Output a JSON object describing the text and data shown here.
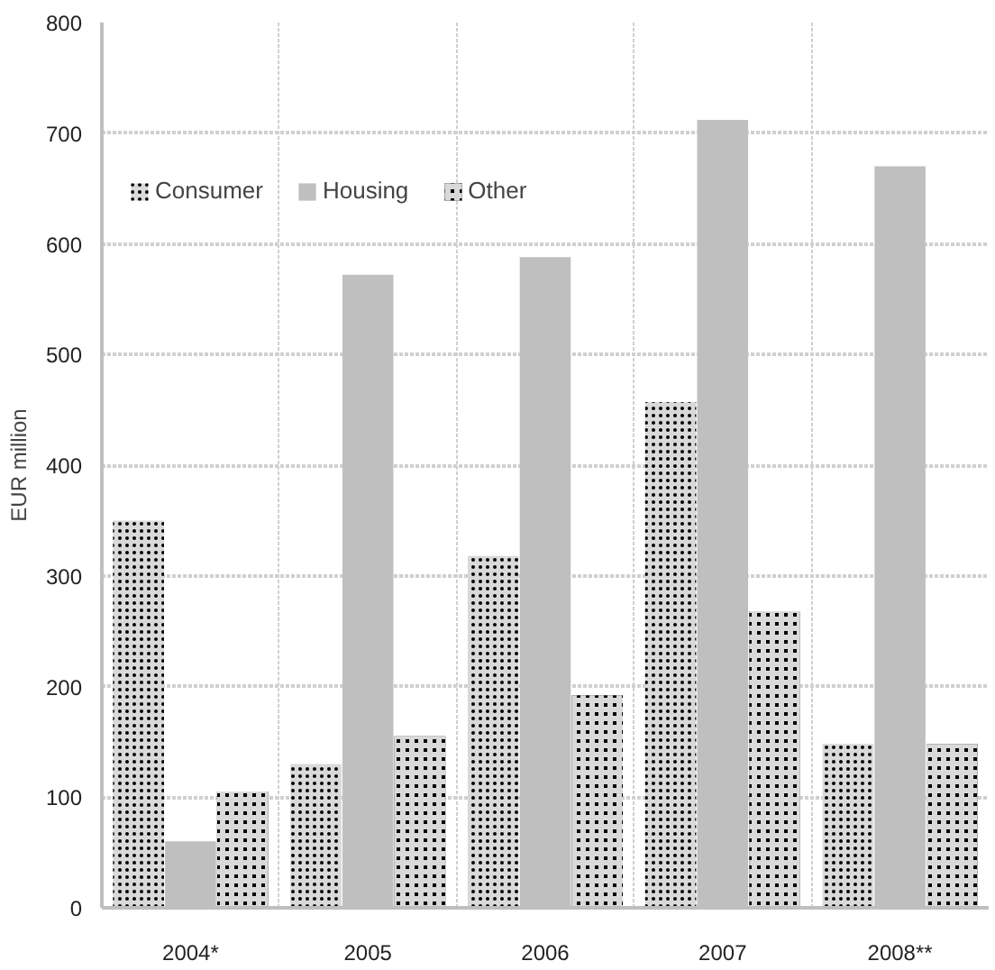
{
  "chart_data": {
    "type": "bar",
    "ylabel": "EUR million",
    "categories": [
      "2004*",
      "2005",
      "2006",
      "2007",
      "2008**"
    ],
    "series": [
      {
        "name": "Consumer",
        "color": "#d9d9d9",
        "values": [
          350,
          130,
          318,
          457,
          148
        ]
      },
      {
        "name": "Housing",
        "color": "#bfbfbf",
        "values": [
          60,
          572,
          588,
          712,
          670
        ]
      },
      {
        "name": "Other",
        "color": "#000000",
        "values": [
          105,
          155,
          192,
          268,
          148
        ]
      }
    ],
    "ylim": [
      0,
      800
    ],
    "yticks": [
      0,
      100,
      200,
      300,
      400,
      500,
      600,
      700,
      800
    ],
    "grid": true,
    "legend": "top left"
  }
}
